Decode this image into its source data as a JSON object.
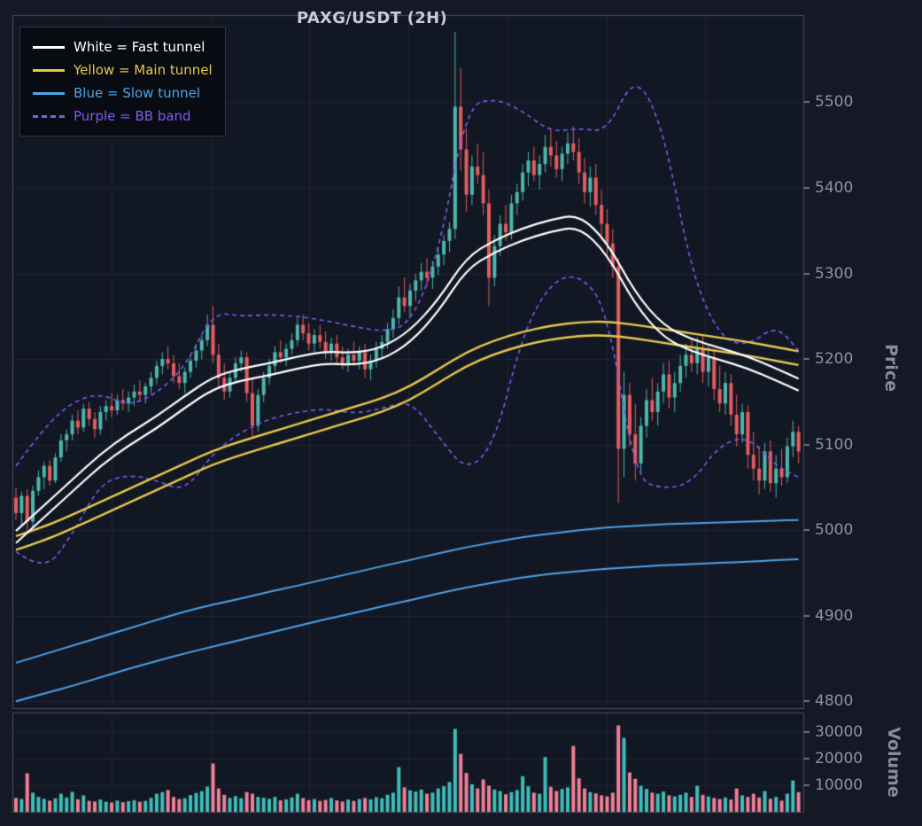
{
  "title": "PAXG/USDT (2H)",
  "legend": {
    "items": [
      {
        "label": "White = Fast tunnel",
        "color": "#ffffff",
        "style": "solid"
      },
      {
        "label": "Yellow = Main tunnel",
        "color": "#e8c84b",
        "style": "solid"
      },
      {
        "label": "Blue = Slow tunnel",
        "color": "#4da3e8",
        "style": "solid"
      },
      {
        "label": "Purple = BB band",
        "color": "#7d5cf0",
        "style": "dashed"
      }
    ]
  },
  "price_axis": {
    "title": "Price",
    "ticks": [
      {
        "label": "5500",
        "value": 5500
      },
      {
        "label": "5400",
        "value": 5400
      },
      {
        "label": "5300",
        "value": 5300
      },
      {
        "label": "5200",
        "value": 5200
      },
      {
        "label": "5100",
        "value": 5100
      },
      {
        "label": "5000",
        "value": 5000
      },
      {
        "label": "4900",
        "value": 4900
      },
      {
        "label": "4800",
        "value": 4800
      }
    ]
  },
  "volume_axis": {
    "title": "Volume",
    "ticks": [
      {
        "label": "30000",
        "value": 30000
      },
      {
        "label": "20000",
        "value": 20000
      },
      {
        "label": "10000",
        "value": 10000
      }
    ]
  },
  "colors": {
    "background": "#151926",
    "panel": "#121724",
    "grid": "#1f2533",
    "border": "#474d5c",
    "tick": "#8b93a2",
    "candle_up": "#4db6ac",
    "candle_down": "#e25d5d",
    "volume_up": "#3fbdb8",
    "volume_down": "#ef7f94",
    "white_line": "#ffffff",
    "yellow_line": "#e8c84b",
    "blue_line": "#4da3e8",
    "purple_line": "#7d5cf0"
  },
  "chart_data": {
    "type": "candlestick",
    "title": "PAXG/USDT (2H)",
    "symbol": "PAXG/USDT",
    "timeframe": "2H",
    "ylabel_price": "Price",
    "ylabel_volume": "Volume",
    "price_ylim": [
      4791,
      5602
    ],
    "volume_ylim": [
      0,
      37000
    ],
    "grid": true,
    "legend_position": "top-left",
    "candles": [
      [
        5038,
        5050,
        5012,
        5020,
        5200
      ],
      [
        5020,
        5045,
        5005,
        5040,
        4800
      ],
      [
        5040,
        5048,
        4998,
        5010,
        14500
      ],
      [
        5010,
        5052,
        5002,
        5046,
        7200
      ],
      [
        5046,
        5070,
        5040,
        5062,
        5600
      ],
      [
        5062,
        5080,
        5048,
        5075,
        4900
      ],
      [
        5075,
        5082,
        5052,
        5058,
        4200
      ],
      [
        5058,
        5090,
        5055,
        5085,
        5100
      ],
      [
        5085,
        5112,
        5080,
        5105,
        6800
      ],
      [
        5105,
        5118,
        5092,
        5112,
        5400
      ],
      [
        5112,
        5135,
        5105,
        5128,
        7500
      ],
      [
        5128,
        5140,
        5112,
        5120,
        4700
      ],
      [
        5120,
        5148,
        5115,
        5142,
        6200
      ],
      [
        5142,
        5150,
        5122,
        5130,
        4100
      ],
      [
        5130,
        5138,
        5108,
        5118,
        3900
      ],
      [
        5118,
        5145,
        5112,
        5138,
        4600
      ],
      [
        5138,
        5152,
        5128,
        5145,
        3800
      ],
      [
        5145,
        5160,
        5132,
        5140,
        3500
      ],
      [
        5140,
        5158,
        5135,
        5152,
        4200
      ],
      [
        5152,
        5165,
        5140,
        5148,
        3600
      ],
      [
        5148,
        5162,
        5138,
        5155,
        4000
      ],
      [
        5155,
        5170,
        5145,
        5162,
        4400
      ],
      [
        5162,
        5175,
        5150,
        5158,
        3800
      ],
      [
        5158,
        5172,
        5148,
        5168,
        4100
      ],
      [
        5168,
        5185,
        5160,
        5178,
        5200
      ],
      [
        5178,
        5198,
        5170,
        5192,
        6800
      ],
      [
        5192,
        5208,
        5182,
        5200,
        7400
      ],
      [
        5200,
        5215,
        5188,
        5195,
        8200
      ],
      [
        5195,
        5205,
        5172,
        5180,
        5600
      ],
      [
        5180,
        5195,
        5165,
        5172,
        4800
      ],
      [
        5172,
        5190,
        5160,
        5185,
        5100
      ],
      [
        5185,
        5205,
        5178,
        5198,
        6300
      ],
      [
        5198,
        5218,
        5190,
        5210,
        7100
      ],
      [
        5210,
        5228,
        5200,
        5222,
        7800
      ],
      [
        5222,
        5252,
        5215,
        5240,
        9500
      ],
      [
        5240,
        5262,
        5195,
        5205,
        18200
      ],
      [
        5205,
        5218,
        5168,
        5178,
        8800
      ],
      [
        5178,
        5195,
        5152,
        5162,
        6400
      ],
      [
        5162,
        5185,
        5155,
        5178,
        5200
      ],
      [
        5178,
        5202,
        5172,
        5195,
        5900
      ],
      [
        5195,
        5210,
        5185,
        5202,
        5100
      ],
      [
        5202,
        5208,
        5150,
        5160,
        7400
      ],
      [
        5160,
        5178,
        5108,
        5122,
        6800
      ],
      [
        5122,
        5165,
        5115,
        5158,
        5600
      ],
      [
        5158,
        5185,
        5150,
        5178,
        5300
      ],
      [
        5178,
        5200,
        5170,
        5192,
        4900
      ],
      [
        5192,
        5215,
        5185,
        5208,
        5600
      ],
      [
        5208,
        5222,
        5195,
        5202,
        4300
      ],
      [
        5202,
        5218,
        5192,
        5212,
        4700
      ],
      [
        5212,
        5230,
        5205,
        5222,
        5400
      ],
      [
        5222,
        5248,
        5215,
        5240,
        6800
      ],
      [
        5240,
        5252,
        5222,
        5230,
        5200
      ],
      [
        5230,
        5242,
        5210,
        5218,
        4400
      ],
      [
        5218,
        5235,
        5208,
        5228,
        4800
      ],
      [
        5228,
        5240,
        5212,
        5220,
        4100
      ],
      [
        5220,
        5232,
        5200,
        5208,
        4500
      ],
      [
        5208,
        5225,
        5198,
        5218,
        5200
      ],
      [
        5218,
        5228,
        5195,
        5202,
        4300
      ],
      [
        5202,
        5215,
        5188,
        5195,
        3900
      ],
      [
        5195,
        5212,
        5185,
        5205,
        4600
      ],
      [
        5205,
        5220,
        5192,
        5198,
        4100
      ],
      [
        5198,
        5215,
        5188,
        5208,
        4800
      ],
      [
        5208,
        5218,
        5178,
        5188,
        5200
      ],
      [
        5188,
        5205,
        5175,
        5198,
        4700
      ],
      [
        5198,
        5220,
        5190,
        5212,
        5500
      ],
      [
        5212,
        5228,
        5200,
        5220,
        5100
      ],
      [
        5220,
        5242,
        5212,
        5235,
        6400
      ],
      [
        5235,
        5258,
        5225,
        5248,
        7200
      ],
      [
        5248,
        5285,
        5240,
        5272,
        16800
      ],
      [
        5272,
        5295,
        5255,
        5262,
        9200
      ],
      [
        5262,
        5288,
        5248,
        5280,
        8100
      ],
      [
        5280,
        5300,
        5268,
        5292,
        7600
      ],
      [
        5292,
        5312,
        5280,
        5302,
        8400
      ],
      [
        5302,
        5318,
        5285,
        5295,
        6800
      ],
      [
        5295,
        5315,
        5282,
        5308,
        7200
      ],
      [
        5308,
        5330,
        5298,
        5322,
        8800
      ],
      [
        5322,
        5345,
        5310,
        5338,
        9600
      ],
      [
        5338,
        5360,
        5325,
        5352,
        11200
      ],
      [
        5352,
        5582,
        5340,
        5495,
        31200
      ],
      [
        5495,
        5540,
        5420,
        5445,
        21800
      ],
      [
        5445,
        5470,
        5372,
        5392,
        14600
      ],
      [
        5392,
        5438,
        5380,
        5425,
        10400
      ],
      [
        5425,
        5452,
        5405,
        5415,
        8800
      ],
      [
        5415,
        5442,
        5368,
        5382,
        12200
      ],
      [
        5382,
        5398,
        5262,
        5295,
        9800
      ],
      [
        5295,
        5345,
        5285,
        5332,
        8400
      ],
      [
        5332,
        5368,
        5320,
        5358,
        7800
      ],
      [
        5358,
        5380,
        5338,
        5348,
        6600
      ],
      [
        5348,
        5392,
        5340,
        5382,
        7400
      ],
      [
        5382,
        5405,
        5368,
        5395,
        8200
      ],
      [
        5395,
        5428,
        5385,
        5418,
        13400
      ],
      [
        5418,
        5442,
        5402,
        5432,
        9600
      ],
      [
        5432,
        5448,
        5408,
        5415,
        7200
      ],
      [
        5415,
        5438,
        5398,
        5428,
        6800
      ],
      [
        5428,
        5462,
        5418,
        5448,
        20600
      ],
      [
        5448,
        5468,
        5425,
        5438,
        9400
      ],
      [
        5438,
        5455,
        5412,
        5422,
        7800
      ],
      [
        5422,
        5448,
        5408,
        5440,
        8600
      ],
      [
        5440,
        5465,
        5428,
        5452,
        9200
      ],
      [
        5452,
        5472,
        5432,
        5442,
        24800
      ],
      [
        5442,
        5458,
        5405,
        5418,
        12600
      ],
      [
        5418,
        5435,
        5382,
        5395,
        8800
      ],
      [
        5395,
        5425,
        5378,
        5412,
        7400
      ],
      [
        5412,
        5428,
        5368,
        5380,
        6900
      ],
      [
        5380,
        5398,
        5345,
        5358,
        6200
      ],
      [
        5358,
        5375,
        5322,
        5335,
        5800
      ],
      [
        5335,
        5352,
        5295,
        5308,
        7200
      ],
      [
        5308,
        5318,
        5032,
        5095,
        32500
      ],
      [
        5095,
        5185,
        5062,
        5158,
        27800
      ],
      [
        5158,
        5172,
        5098,
        5112,
        14800
      ],
      [
        5112,
        5148,
        5058,
        5078,
        12400
      ],
      [
        5078,
        5132,
        5068,
        5122,
        9800
      ],
      [
        5122,
        5165,
        5108,
        5152,
        8600
      ],
      [
        5152,
        5178,
        5128,
        5138,
        7200
      ],
      [
        5138,
        5172,
        5122,
        5162,
        6800
      ],
      [
        5162,
        5195,
        5148,
        5182,
        7600
      ],
      [
        5182,
        5198,
        5142,
        5155,
        6200
      ],
      [
        5155,
        5185,
        5138,
        5172,
        5800
      ],
      [
        5172,
        5205,
        5162,
        5192,
        6400
      ],
      [
        5192,
        5218,
        5178,
        5205,
        7200
      ],
      [
        5205,
        5222,
        5185,
        5195,
        5600
      ],
      [
        5195,
        5225,
        5182,
        5212,
        9800
      ],
      [
        5212,
        5228,
        5172,
        5185,
        6400
      ],
      [
        5185,
        5215,
        5168,
        5202,
        5800
      ],
      [
        5202,
        5212,
        5152,
        5165,
        5200
      ],
      [
        5165,
        5192,
        5138,
        5148,
        4800
      ],
      [
        5148,
        5185,
        5135,
        5172,
        5400
      ],
      [
        5172,
        5182,
        5122,
        5135,
        4600
      ],
      [
        5135,
        5158,
        5098,
        5112,
        8800
      ],
      [
        5112,
        5148,
        5102,
        5138,
        6200
      ],
      [
        5138,
        5146,
        5072,
        5088,
        5600
      ],
      [
        5088,
        5115,
        5058,
        5072,
        6800
      ],
      [
        5072,
        5098,
        5042,
        5058,
        5400
      ],
      [
        5058,
        5102,
        5048,
        5092,
        7800
      ],
      [
        5092,
        5105,
        5045,
        5055,
        4900
      ],
      [
        5055,
        5088,
        5038,
        5072,
        5600
      ],
      [
        5072,
        5095,
        5052,
        5062,
        4200
      ],
      [
        5062,
        5108,
        5055,
        5098,
        6800
      ],
      [
        5098,
        5128,
        5085,
        5115,
        11800
      ],
      [
        5115,
        5122,
        5078,
        5092,
        7400
      ]
    ],
    "overlay_sample_indices": [
      0,
      5,
      10,
      15,
      20,
      25,
      30,
      35,
      40,
      45,
      50,
      55,
      60,
      65,
      70,
      75,
      80,
      85,
      90,
      95,
      100,
      105,
      110,
      115,
      120,
      125,
      130,
      135,
      139
    ],
    "overlays": [
      {
        "name": "bb_upper",
        "legend": "Purple = BB band",
        "color": "#7d5cf0",
        "dash": true,
        "width": 1.6,
        "values": [
          5075,
          5120,
          5150,
          5160,
          5145,
          5160,
          5190,
          5255,
          5250,
          5252,
          5250,
          5245,
          5238,
          5232,
          5240,
          5320,
          5495,
          5505,
          5490,
          5465,
          5470,
          5465,
          5535,
          5470,
          5300,
          5225,
          5215,
          5240,
          5210
        ]
      },
      {
        "name": "bb_lower",
        "legend": "Purple = BB band",
        "color": "#7d5cf0",
        "dash": true,
        "width": 1.6,
        "values": [
          4975,
          4950,
          4995,
          5055,
          5065,
          5058,
          5045,
          5090,
          5115,
          5130,
          5138,
          5142,
          5136,
          5142,
          5152,
          5110,
          5068,
          5100,
          5230,
          5290,
          5300,
          5260,
          5060,
          5048,
          5055,
          5100,
          5110,
          5075,
          5062
        ]
      },
      {
        "name": "slow_tunnel_upper",
        "legend": "Blue = Slow tunnel",
        "color": "#4da3e8",
        "dash": false,
        "width": 2,
        "values": [
          4845,
          4855,
          4865,
          4875,
          4885,
          4895,
          4905,
          4913,
          4920,
          4928,
          4935,
          4943,
          4950,
          4958,
          4965,
          4973,
          4980,
          4986,
          4992,
          4996,
          5000,
          5003,
          5005,
          5007,
          5008,
          5009,
          5010,
          5011,
          5012
        ]
      },
      {
        "name": "slow_tunnel_lower",
        "legend": "Blue = Slow tunnel",
        "color": "#4da3e8",
        "dash": false,
        "width": 2,
        "values": [
          4800,
          4809,
          4818,
          4828,
          4838,
          4847,
          4856,
          4864,
          4872,
          4880,
          4888,
          4896,
          4903,
          4911,
          4918,
          4926,
          4933,
          4939,
          4945,
          4949,
          4952,
          4955,
          4957,
          4959,
          4960,
          4962,
          4963,
          4965,
          4966
        ]
      },
      {
        "name": "main_tunnel_upper",
        "legend": "Yellow = Main tunnel",
        "color": "#e8c84b",
        "dash": false,
        "width": 2.4,
        "values": [
          4993,
          5004,
          5018,
          5033,
          5048,
          5063,
          5078,
          5093,
          5104,
          5114,
          5124,
          5134,
          5144,
          5154,
          5168,
          5188,
          5208,
          5222,
          5232,
          5239,
          5243,
          5244,
          5240,
          5235,
          5230,
          5225,
          5220,
          5214,
          5209
        ]
      },
      {
        "name": "main_tunnel_lower",
        "legend": "Yellow = Main tunnel",
        "color": "#e8c84b",
        "dash": false,
        "width": 2.4,
        "values": [
          4977,
          4988,
          5002,
          5017,
          5032,
          5047,
          5062,
          5077,
          5088,
          5098,
          5108,
          5118,
          5128,
          5138,
          5152,
          5172,
          5192,
          5206,
          5216,
          5223,
          5227,
          5228,
          5224,
          5219,
          5214,
          5209,
          5204,
          5198,
          5193
        ]
      },
      {
        "name": "fast_tunnel_upper",
        "legend": "White = Fast tunnel",
        "color": "#ffffff",
        "dash": false,
        "width": 2.2,
        "values": [
          4999,
          5029,
          5059,
          5089,
          5113,
          5133,
          5157,
          5179,
          5189,
          5195,
          5203,
          5209,
          5207,
          5213,
          5233,
          5269,
          5319,
          5339,
          5353,
          5363,
          5369,
          5337,
          5277,
          5239,
          5223,
          5213,
          5203,
          5189,
          5177
        ]
      },
      {
        "name": "fast_tunnel_lower",
        "legend": "White = Fast tunnel",
        "color": "#ffffff",
        "dash": false,
        "width": 2.2,
        "values": [
          4985,
          5015,
          5045,
          5075,
          5099,
          5119,
          5143,
          5165,
          5175,
          5181,
          5189,
          5195,
          5193,
          5199,
          5219,
          5255,
          5305,
          5325,
          5339,
          5349,
          5355,
          5323,
          5263,
          5225,
          5209,
          5199,
          5189,
          5175,
          5163
        ]
      }
    ]
  }
}
